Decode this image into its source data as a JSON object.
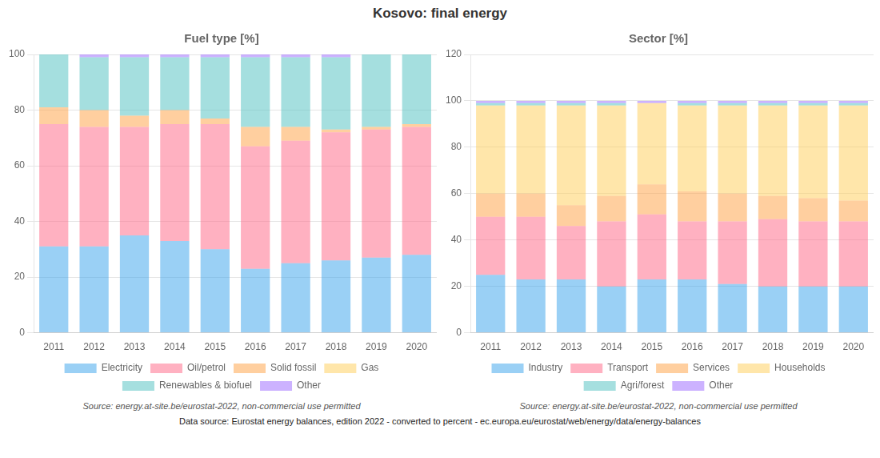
{
  "title": "Kosovo: final energy",
  "annotations": [
    "Data source: Eurostat energy balances, edition 2022 - converted to percent - ec.europa.eu/eurostat/web/energy/data/energy-balances"
  ],
  "chart_data": [
    {
      "type": "bar",
      "stacked": true,
      "title": "Fuel type [%]",
      "categories": [
        2011,
        2012,
        2013,
        2014,
        2015,
        2016,
        2017,
        2018,
        2019,
        2020
      ],
      "series": [
        {
          "name": "Electricity",
          "values": [
            31,
            31,
            35,
            33,
            30,
            23,
            25,
            26,
            27,
            28
          ]
        },
        {
          "name": "Oil/petrol",
          "values": [
            44,
            43,
            39,
            42,
            45,
            44,
            44,
            46,
            46,
            46
          ]
        },
        {
          "name": "Solid fossil",
          "values": [
            6,
            6,
            4,
            5,
            2,
            7,
            5,
            1,
            1,
            1
          ]
        },
        {
          "name": "Gas",
          "values": [
            0,
            0,
            0,
            0,
            0,
            0,
            0,
            0,
            0,
            0
          ]
        },
        {
          "name": "Renewables & biofuel",
          "values": [
            19,
            19,
            21,
            19,
            22,
            25,
            25,
            26,
            26,
            25
          ]
        },
        {
          "name": "Other",
          "values": [
            0,
            1,
            1,
            1,
            1,
            1,
            1,
            1,
            0,
            0
          ]
        }
      ],
      "ylim": [
        0,
        100
      ],
      "yticks": [
        0,
        20,
        40,
        60,
        80,
        100
      ],
      "grid": true,
      "legend": "bottom",
      "annotations": [
        "Source: energy.at-site.be/eurostat-2022, non-commercial use permitted"
      ]
    },
    {
      "type": "bar",
      "stacked": true,
      "title": "Sector [%]",
      "categories": [
        2011,
        2012,
        2013,
        2014,
        2015,
        2016,
        2017,
        2018,
        2019,
        2020
      ],
      "series": [
        {
          "name": "Industry",
          "values": [
            25,
            23,
            23,
            20,
            23,
            23,
            21,
            20,
            20,
            20
          ]
        },
        {
          "name": "Transport",
          "values": [
            25,
            27,
            23,
            28,
            28,
            25,
            27,
            29,
            28,
            28
          ]
        },
        {
          "name": "Services",
          "values": [
            10,
            10,
            9,
            11,
            13,
            13,
            12,
            10,
            10,
            9
          ]
        },
        {
          "name": "Households",
          "values": [
            38,
            38,
            43,
            39,
            35,
            37,
            38,
            39,
            40,
            41
          ]
        },
        {
          "name": "Agri/forest",
          "values": [
            1,
            1,
            1,
            1,
            0,
            1,
            1,
            1,
            1,
            1
          ]
        },
        {
          "name": "Other",
          "values": [
            1,
            1,
            1,
            1,
            1,
            1,
            1,
            1,
            1,
            1
          ]
        }
      ],
      "ylim": [
        0,
        120
      ],
      "yticks": [
        0,
        20,
        40,
        60,
        80,
        100,
        120
      ],
      "grid": true,
      "legend": "bottom",
      "annotations": [
        "Source: energy.at-site.be/eurostat-2022, non-commercial use permitted"
      ]
    }
  ]
}
